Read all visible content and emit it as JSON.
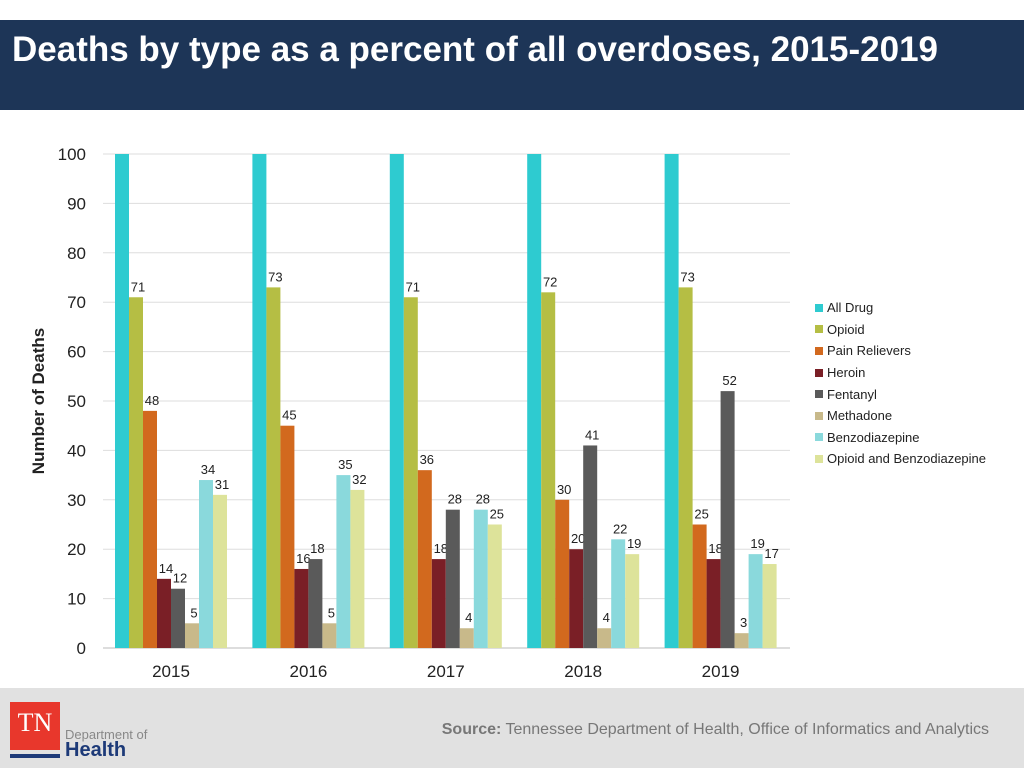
{
  "header": {
    "title": "Deaths by type as a percent of all overdoses, 2015-2019"
  },
  "footer": {
    "source_label": "Source:",
    "source_text": "Tennessee Department of Health, Office of Informatics and Analytics",
    "logo": {
      "mark": "TN",
      "line1": "Department of",
      "line2": "Health"
    }
  },
  "chart_data": {
    "type": "bar",
    "title": "",
    "xlabel": "",
    "ylabel": "Number of Deaths",
    "ylim": [
      0,
      100
    ],
    "yticks": [
      0,
      10,
      20,
      30,
      40,
      50,
      60,
      70,
      80,
      90,
      100
    ],
    "grid": true,
    "legend_position": "right",
    "categories": [
      "2015",
      "2016",
      "2017",
      "2018",
      "2019"
    ],
    "series": [
      {
        "name": "All Drug",
        "color": "#2ecbd0",
        "values": [
          100,
          100,
          100,
          100,
          100
        ],
        "labeled": false
      },
      {
        "name": "Opioid",
        "color": "#b5be44",
        "values": [
          71,
          73,
          71,
          72,
          73
        ]
      },
      {
        "name": "Pain Relievers",
        "color": "#d2691e",
        "values": [
          48,
          45,
          36,
          30,
          25
        ]
      },
      {
        "name": "Heroin",
        "color": "#7a1f26",
        "values": [
          14,
          16,
          18,
          20,
          18
        ]
      },
      {
        "name": "Fentanyl",
        "color": "#5a5a5a",
        "values": [
          12,
          18,
          28,
          41,
          52
        ]
      },
      {
        "name": "Methadone",
        "color": "#c8b98a",
        "values": [
          5,
          5,
          4,
          4,
          3
        ]
      },
      {
        "name": "Benzodiazepine",
        "color": "#8ad9dc",
        "values": [
          34,
          35,
          28,
          22,
          19
        ]
      },
      {
        "name": "Opioid and Benzodiazepine",
        "color": "#dde39a",
        "values": [
          31,
          32,
          25,
          19,
          17
        ]
      }
    ]
  }
}
